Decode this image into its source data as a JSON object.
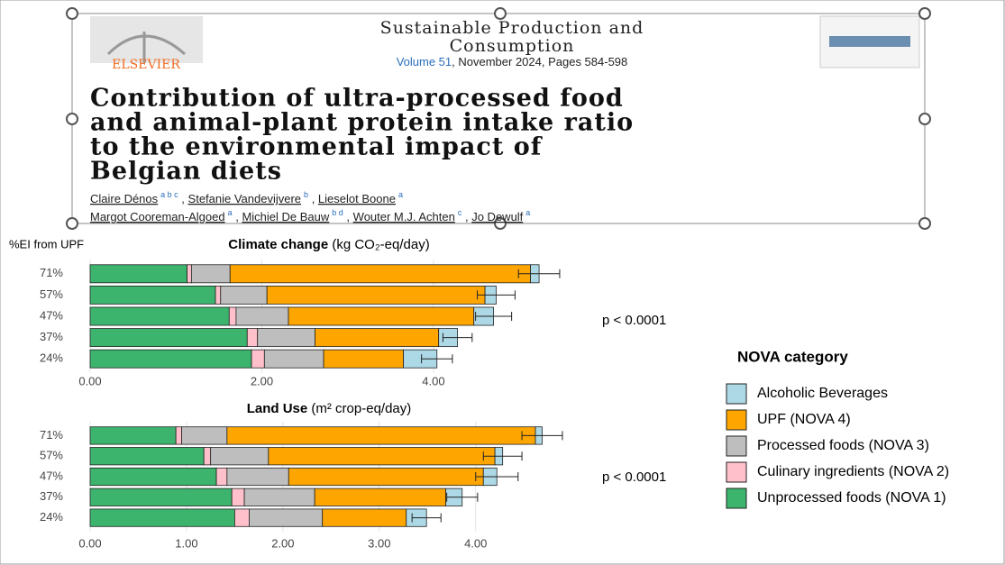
{
  "header": {
    "publisher": "ELSEVIER",
    "journal_lines": [
      "Sustainable Production and",
      "Consumption"
    ],
    "volume": "Volume 51",
    "issue": ", November 2024, Pages 584-598",
    "title_lines": [
      "Contribution of ultra-processed food",
      "and animal-plant protein intake ratio",
      "to the environmental impact of",
      "Belgian diets"
    ],
    "author_lines": [
      [
        {
          "name": "Claire Dénos",
          "affil": "a b c"
        },
        {
          "name": "Stefanie Vandevijvere",
          "affil": "b"
        },
        {
          "name": "Lieselot Boone",
          "affil": "a"
        }
      ],
      [
        {
          "name": "Margot Cooreman-Algoed",
          "affil": "a"
        },
        {
          "name": "Michiel De Bauw",
          "affil": "b d"
        },
        {
          "name": "Wouter M.J. Achten",
          "affil": "c"
        },
        {
          "name": "Jo Dewulf",
          "affil": "a"
        }
      ]
    ]
  },
  "legend_title": "NOVA category",
  "chart_data": [
    {
      "type": "bar",
      "orientation": "horizontal",
      "title": "Climate change",
      "unit": "(kg CO₂-eq/day)",
      "ylabel": "%EI from UPF",
      "annotation": "p < 0.0001",
      "categories": [
        "71%",
        "57%",
        "47%",
        "37%",
        "24%"
      ],
      "series": [
        {
          "name": "Unprocessed foods (NOVA 1)",
          "color": "#3cb46e",
          "values": [
            1.13,
            1.46,
            1.62,
            1.83,
            1.88
          ]
        },
        {
          "name": "Culinary ingredients (NOVA 2)",
          "color": "#ffc0cb",
          "values": [
            0.05,
            0.06,
            0.08,
            0.12,
            0.15
          ]
        },
        {
          "name": "Processed foods (NOVA 3)",
          "color": "#bebebe",
          "values": [
            0.45,
            0.54,
            0.61,
            0.67,
            0.69
          ]
        },
        {
          "name": "UPF (NOVA 4)",
          "color": "#ffa500",
          "values": [
            3.5,
            2.54,
            2.16,
            1.44,
            0.93
          ]
        },
        {
          "name": "Alcoholic Beverages",
          "color": "#add8e6",
          "values": [
            0.1,
            0.13,
            0.23,
            0.22,
            0.39
          ]
        }
      ],
      "errors": [
        0.24,
        0.22,
        0.21,
        0.17,
        0.18
      ],
      "xlim": [
        0,
        5.67
      ],
      "xticks": [
        {
          "value": 0,
          "label": "0.00"
        },
        {
          "value": 2,
          "label": "2.00"
        },
        {
          "value": 4,
          "label": "4.00"
        }
      ],
      "grid": true
    },
    {
      "type": "bar",
      "orientation": "horizontal",
      "title": "Land Use",
      "unit": "(m² crop-eq/day)",
      "annotation": "p < 0.0001",
      "categories": [
        "71%",
        "57%",
        "47%",
        "37%",
        "24%"
      ],
      "series": [
        {
          "name": "Unprocessed foods (NOVA 1)",
          "color": "#3cb46e",
          "values": [
            0.89,
            1.18,
            1.31,
            1.47,
            1.5
          ]
        },
        {
          "name": "Culinary ingredients (NOVA 2)",
          "color": "#ffc0cb",
          "values": [
            0.06,
            0.07,
            0.11,
            0.13,
            0.15
          ]
        },
        {
          "name": "Processed foods (NOVA 3)",
          "color": "#bebebe",
          "values": [
            0.47,
            0.6,
            0.64,
            0.73,
            0.76
          ]
        },
        {
          "name": "UPF (NOVA 4)",
          "color": "#ffa500",
          "values": [
            3.2,
            2.35,
            2.02,
            1.36,
            0.87
          ]
        },
        {
          "name": "Alcoholic Beverages",
          "color": "#add8e6",
          "values": [
            0.07,
            0.08,
            0.14,
            0.17,
            0.21
          ]
        }
      ],
      "errors": [
        0.21,
        0.2,
        0.22,
        0.16,
        0.15
      ],
      "xlim": [
        0,
        5.05
      ],
      "xticks": [
        {
          "value": 0,
          "label": "0.00"
        },
        {
          "value": 1,
          "label": "1.00"
        },
        {
          "value": 2,
          "label": "2.00"
        },
        {
          "value": 3,
          "label": "3.00"
        },
        {
          "value": 4,
          "label": "4.00"
        }
      ],
      "grid": true
    }
  ]
}
